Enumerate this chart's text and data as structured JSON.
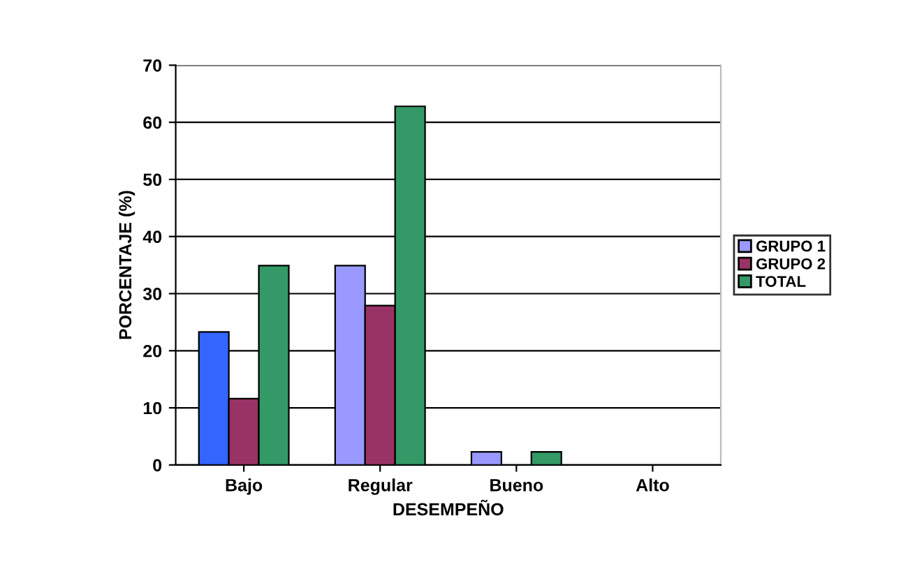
{
  "chart_data": {
    "type": "bar",
    "xlabel": "DESEMPEÑO",
    "ylabel": "PORCENTAJE (%)",
    "categories": [
      "Bajo",
      "Regular",
      "Bueno",
      "Alto"
    ],
    "series": [
      {
        "name": "GRUPO 1",
        "color": "#9999ff",
        "colors": [
          "#3366ff",
          "#9999ff",
          "#9999ff",
          "#9999ff"
        ],
        "values": [
          23.3,
          34.9,
          2.3,
          0
        ]
      },
      {
        "name": "GRUPO 2",
        "color": "#993366",
        "values": [
          11.6,
          27.9,
          0,
          0
        ]
      },
      {
        "name": "TOTAL",
        "color": "#339966",
        "values": [
          34.9,
          62.8,
          2.3,
          0
        ]
      }
    ],
    "ylim": [
      0,
      70
    ],
    "yticks": [
      0,
      10,
      20,
      30,
      40,
      50,
      60,
      70
    ],
    "grid": "y",
    "legend": "right"
  }
}
